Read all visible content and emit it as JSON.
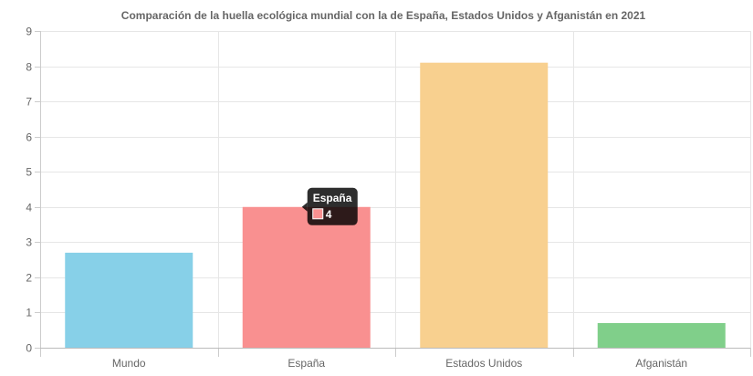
{
  "chart_data": {
    "type": "bar",
    "title": "Comparación de la huella ecológica mundial con la de España, Estados Unidos y Afganistán en 2021",
    "xlabel": "",
    "ylabel": "",
    "categories": [
      "Mundo",
      "España",
      "Estados Unidos",
      "Afganistán"
    ],
    "values": [
      2.7,
      4,
      8.1,
      0.7
    ],
    "colors": [
      "#87d0e8",
      "#f99090",
      "#f8d08f",
      "#80cf8a"
    ],
    "ylim": [
      0,
      9
    ],
    "yticks": [
      "0",
      "1",
      "2",
      "3",
      "4",
      "5",
      "6",
      "7",
      "8",
      "9"
    ],
    "grid": true,
    "legend": "none",
    "tooltip": {
      "category": "España",
      "title": "España",
      "value_label": "4",
      "swatch_color": "#f99090"
    }
  }
}
